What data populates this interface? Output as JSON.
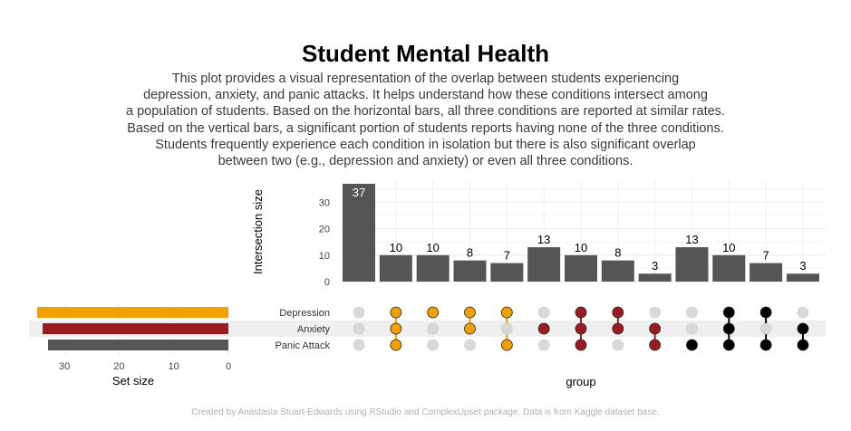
{
  "title": "Student Mental Health",
  "subtitle_lines": [
    "This plot provides a visual representation of the overlap between students experiencing",
    "depression, anxiety, and panic attacks. It helps understand how these conditions intersect among",
    "a population of students. Based on the horizontal bars, all three conditions are reported at similar rates.",
    "Based on the vertical bars, a significant portion of students reports having none of the three conditions.",
    "Students frequently experience each condition in isolation but there is also significant overlap",
    "between two (e.g., depression and anxiety) or even all three conditions."
  ],
  "caption": "Created by Anastasia Stuart-Edwards using RStudio and ComplexUpset package. Data is from Kaggle dataset base.",
  "colors": {
    "bar": "#555555",
    "inactive_dot": "#d9d9d9",
    "depression_only_group": "#f0a000",
    "anxiety_group": "#9b1c20",
    "panic_group": "#000000",
    "band": "#efefef"
  },
  "chart_data": {
    "type": "bar",
    "ylabel": "Intersection size",
    "xlabel": "group",
    "ylim": [
      0,
      37
    ],
    "yticks": [
      0,
      10,
      20,
      30
    ],
    "sets": [
      "Depression",
      "Anxiety",
      "Panic Attack"
    ],
    "set_colors": [
      "#f0a000",
      "#9b1c20",
      "#555555"
    ],
    "set_size_label": "Set size",
    "set_size_ticks": [
      30,
      20,
      10,
      0
    ],
    "set_sizes": [
      35,
      34,
      33
    ],
    "intersections": [
      {
        "size": 37,
        "members": [],
        "color": "#555555"
      },
      {
        "size": 10,
        "members": [
          0,
          1,
          2
        ],
        "color": "#f0a000"
      },
      {
        "size": 10,
        "members": [
          0
        ],
        "color": "#f0a000"
      },
      {
        "size": 8,
        "members": [
          0,
          1
        ],
        "color": "#f0a000"
      },
      {
        "size": 7,
        "members": [
          0,
          2
        ],
        "color": "#f0a000"
      },
      {
        "size": 13,
        "members": [
          1
        ],
        "color": "#9b1c20"
      },
      {
        "size": 10,
        "members": [
          0,
          1,
          2
        ],
        "color": "#9b1c20"
      },
      {
        "size": 8,
        "members": [
          0,
          1
        ],
        "color": "#9b1c20"
      },
      {
        "size": 3,
        "members": [
          1,
          2
        ],
        "color": "#9b1c20"
      },
      {
        "size": 13,
        "members": [
          2
        ],
        "color": "#000000"
      },
      {
        "size": 10,
        "members": [
          0,
          1,
          2
        ],
        "color": "#000000"
      },
      {
        "size": 7,
        "members": [
          0,
          2
        ],
        "color": "#000000"
      },
      {
        "size": 3,
        "members": [
          1,
          2
        ],
        "color": "#000000"
      }
    ]
  }
}
